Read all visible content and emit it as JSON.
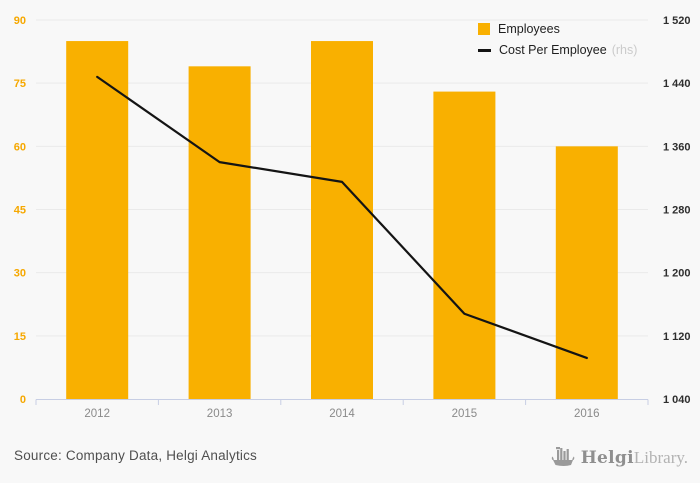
{
  "chart_data": {
    "type": "bar",
    "categories": [
      "2012",
      "2013",
      "2014",
      "2015",
      "2016"
    ],
    "series": [
      {
        "name": "Employees",
        "type": "bar",
        "axis": "left",
        "color": "#F9B000",
        "values": [
          85,
          79,
          85,
          73,
          60
        ]
      },
      {
        "name": "Cost Per Employee",
        "type": "line",
        "axis": "right",
        "color": "#141414",
        "values": [
          1448,
          1340,
          1315,
          1148,
          1092
        ]
      }
    ],
    "title": "",
    "xlabel": "",
    "ylabel": "",
    "left_axis": {
      "min": 0,
      "max": 90,
      "step": 15,
      "tick_labels": [
        "0",
        "15",
        "30",
        "45",
        "60",
        "75",
        "90"
      ],
      "label_color": "#F6A800"
    },
    "right_axis": {
      "min": 1040,
      "max": 1520,
      "step": 80,
      "tick_labels": [
        "1 040",
        "1 120",
        "1 200",
        "1 280",
        "1 360",
        "1 440",
        "1 520"
      ],
      "label_color": "#2E2E2E"
    },
    "grid": true,
    "legend_position": "top-right"
  },
  "legend": {
    "rows": [
      {
        "label": "Employees",
        "note": ""
      },
      {
        "label": "Cost Per Employee",
        "note": "(rhs)"
      }
    ]
  },
  "footer": {
    "source": "Source: Company Data, Helgi Analytics",
    "logo_bold": "Helgi",
    "logo_light": "Library."
  },
  "colors": {
    "background": "#F8F8F8",
    "bar": "#F9B000",
    "line": "#141414",
    "gridline": "#EAEAEA",
    "axis_line": "#C7CEE4",
    "x_label": "#8A8A8A",
    "left_tick": "#F6A800",
    "right_tick": "#2E2E2E"
  }
}
